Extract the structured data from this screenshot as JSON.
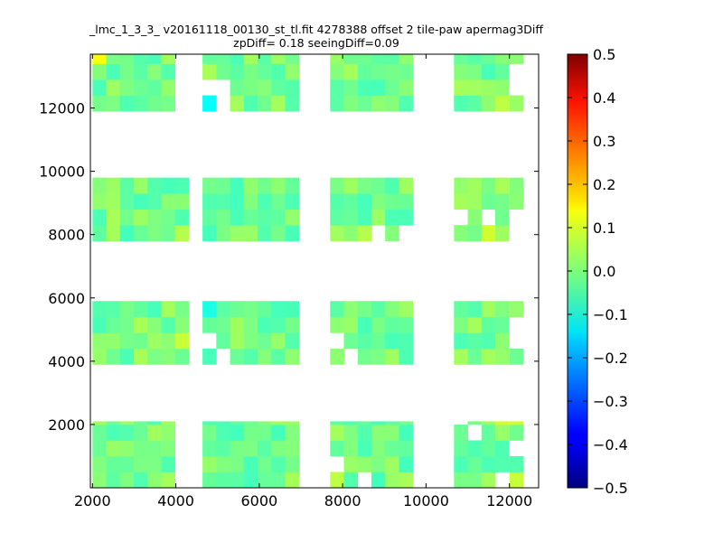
{
  "chart_data": {
    "type": "heatmap",
    "title": "_lmc_1_3_3_ v20161118_00130_st_tl.fit 4278388 offset 2 tile-paw apermag3Diff",
    "subtitle": "zpDiff= 0.18 seeingDiff=0.09",
    "xlabel": "",
    "ylabel": "",
    "xlim": [
      1950,
      12700
    ],
    "ylim": [
      0,
      13700
    ],
    "x_ticks": [
      "2000",
      "4000",
      "6000",
      "8000",
      "10000",
      "12000"
    ],
    "y_ticks": [
      "2000",
      "4000",
      "6000",
      "8000",
      "10000",
      "12000"
    ],
    "colorbar": {
      "vmin": -0.5,
      "vmax": 0.5,
      "ticks": [
        "0.5",
        "0.4",
        "0.3",
        "0.2",
        "0.1",
        "0.0",
        "−0.1",
        "−0.2",
        "−0.3",
        "−0.4",
        "−0.5"
      ],
      "colormap": "jet"
    },
    "grid": false,
    "cell_size": [
      330,
      500
    ],
    "x_columns": [
      2000,
      2330,
      2660,
      2990,
      3320,
      3650,
      3980,
      4310,
      4640,
      4970,
      5300,
      5630,
      5960,
      6290,
      6620,
      7700,
      8030,
      8360,
      8690,
      9020,
      9350,
      9680,
      10010,
      10340,
      10670,
      11000,
      11330,
      11660,
      12000,
      12330
    ],
    "panels": [
      {
        "x_range": [
          2000,
          4000
        ],
        "y_range": [
          11900,
          13700
        ]
      },
      {
        "x_range": [
          4640,
          7000
        ],
        "y_range": [
          11900,
          13700
        ]
      },
      {
        "x_range": [
          7700,
          10000
        ],
        "y_range": [
          11900,
          13700
        ]
      },
      {
        "x_range": [
          10670,
          12600
        ],
        "y_range": [
          11900,
          13700
        ]
      },
      {
        "x_range": [
          2000,
          4330
        ],
        "y_range": [
          7800,
          9800
        ]
      },
      {
        "x_range": [
          4640,
          7000
        ],
        "y_range": [
          7800,
          9800
        ]
      },
      {
        "x_range": [
          7700,
          10000
        ],
        "y_range": [
          7800,
          9800
        ]
      },
      {
        "x_range": [
          10670,
          12600
        ],
        "y_range": [
          7800,
          9800
        ]
      },
      {
        "x_range": [
          2000,
          4330
        ],
        "y_range": [
          3900,
          5900
        ]
      },
      {
        "x_range": [
          4640,
          7000
        ],
        "y_range": [
          3900,
          5900
        ]
      },
      {
        "x_range": [
          7700,
          10000
        ],
        "y_range": [
          3900,
          5900
        ]
      },
      {
        "x_range": [
          10670,
          12600
        ],
        "y_range": [
          3900,
          5900
        ]
      },
      {
        "x_range": [
          2000,
          4000
        ],
        "y_range": [
          0,
          2100
        ]
      },
      {
        "x_range": [
          4640,
          7000
        ],
        "y_range": [
          0,
          2100
        ]
      },
      {
        "x_range": [
          7700,
          10000
        ],
        "y_range": [
          0,
          2100
        ]
      },
      {
        "x_range": [
          10670,
          12600
        ],
        "y_range": [
          0,
          2100
        ]
      }
    ],
    "missing_cells": [
      [
        4310,
        12900
      ],
      [
        4640,
        12400
      ],
      [
        4970,
        12400
      ],
      [
        4970,
        11900
      ],
      [
        12000,
        12400
      ],
      [
        12000,
        12900
      ],
      [
        10670,
        8300
      ],
      [
        11330,
        8300
      ],
      [
        12000,
        8300
      ],
      [
        12000,
        7800
      ],
      [
        12330,
        8300
      ],
      [
        8690,
        7800
      ],
      [
        9350,
        7800
      ],
      [
        4310,
        5400
      ],
      [
        4310,
        4900
      ],
      [
        4640,
        4400
      ],
      [
        4970,
        3900
      ],
      [
        12000,
        4900
      ],
      [
        12330,
        4900
      ],
      [
        12000,
        4400
      ],
      [
        12330,
        4400
      ],
      [
        7700,
        4400
      ],
      [
        8030,
        3900
      ],
      [
        10670,
        2000
      ],
      [
        11000,
        1500
      ],
      [
        12000,
        1000
      ],
      [
        12330,
        1000
      ],
      [
        12330,
        1500
      ],
      [
        10340,
        1000
      ],
      [
        7700,
        500
      ],
      [
        8360,
        0
      ],
      [
        11660,
        0
      ]
    ],
    "highlight_cells": [
      {
        "x": 2000,
        "y": 13400,
        "value": 0.12
      },
      {
        "x": 2660,
        "y": 9900,
        "value": 0.05
      },
      {
        "x": 3980,
        "y": 8900,
        "value": 0.06
      },
      {
        "x": 3980,
        "y": 7800,
        "value": 0.05
      },
      {
        "x": 3980,
        "y": 4400,
        "value": 0.07
      },
      {
        "x": 4640,
        "y": 11900,
        "value": -0.12
      },
      {
        "x": 4640,
        "y": 5400,
        "value": -0.1
      },
      {
        "x": 11660,
        "y": 11900,
        "value": 0.06
      },
      {
        "x": 11330,
        "y": 7800,
        "value": 0.08
      },
      {
        "x": 8360,
        "y": 7800,
        "value": 0.05
      },
      {
        "x": 10010,
        "y": 7800,
        "value": 0.04
      },
      {
        "x": 12000,
        "y": 9400,
        "value": 0.07
      },
      {
        "x": 12330,
        "y": 9400,
        "value": 0.07
      },
      {
        "x": 11660,
        "y": 2000,
        "value": 0.08
      },
      {
        "x": 12000,
        "y": 2000,
        "value": 0.08
      },
      {
        "x": 10340,
        "y": 0,
        "value": -0.08
      },
      {
        "x": 7700,
        "y": 0,
        "value": 0.06
      },
      {
        "x": 12000,
        "y": 0,
        "value": 0.07
      },
      {
        "x": 12330,
        "y": 0,
        "value": 0.06
      }
    ],
    "typical_value_range": [
      -0.06,
      0.04
    ]
  }
}
